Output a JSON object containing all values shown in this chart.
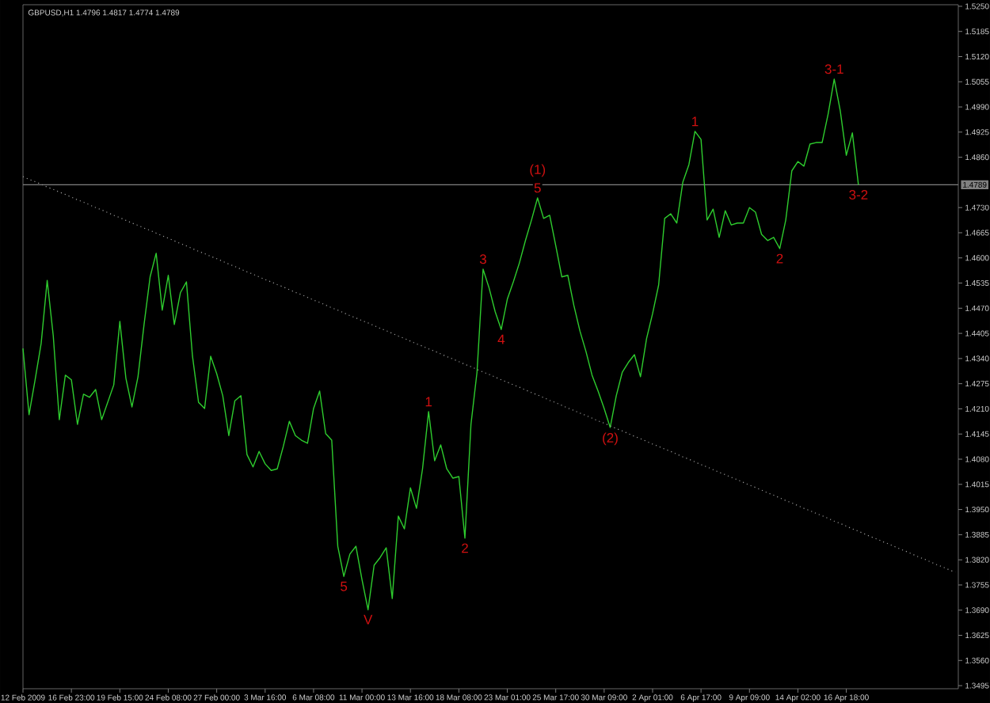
{
  "chart_data": {
    "type": "line",
    "title": "GBPUSD,H1  1.4796 1.4817 1.4774 1.4789",
    "categories": [
      "12 Feb 2009",
      null,
      null,
      null,
      null,
      null,
      null,
      null,
      "16 Feb 23:00",
      null,
      null,
      null,
      null,
      null,
      null,
      null,
      "19 Feb 15:00",
      null,
      null,
      null,
      null,
      null,
      null,
      null,
      "24 Feb 08:00",
      null,
      null,
      null,
      null,
      null,
      null,
      null,
      "27 Feb 00:00",
      null,
      null,
      null,
      null,
      null,
      null,
      null,
      "3 Mar 16:00",
      null,
      null,
      null,
      null,
      null,
      null,
      null,
      "6 Mar 08:00",
      null,
      null,
      null,
      null,
      null,
      null,
      null,
      "11 Mar 00:00",
      null,
      null,
      null,
      null,
      null,
      null,
      null,
      "13 Mar 16:00",
      null,
      null,
      null,
      null,
      null,
      null,
      null,
      "18 Mar 08:00",
      null,
      null,
      null,
      null,
      null,
      null,
      null,
      "23 Mar 01:00",
      null,
      null,
      null,
      null,
      null,
      null,
      null,
      "25 Mar 17:00",
      null,
      null,
      null,
      null,
      null,
      null,
      null,
      "30 Mar 09:00",
      null,
      null,
      null,
      null,
      null,
      null,
      null,
      "2 Apr 01:00",
      null,
      null,
      null,
      null,
      null,
      null,
      null,
      "6 Apr 17:00",
      null,
      null,
      null,
      null,
      null,
      null,
      null,
      "9 Apr 09:00",
      null,
      null,
      null,
      null,
      null,
      null,
      null,
      "14 Apr 02:00",
      null,
      null,
      null,
      null,
      null,
      null,
      null,
      "16 Apr 18:00",
      null,
      null,
      null,
      null,
      null,
      null,
      null,
      null,
      null,
      null,
      null,
      null,
      null,
      null,
      null,
      null,
      null,
      null
    ],
    "series": [
      {
        "color": "#2ecc2e",
        "values": [
          1.4366,
          1.4195,
          1.4285,
          1.4379,
          1.4542,
          1.4399,
          1.4182,
          1.4297,
          1.4285,
          1.417,
          1.4248,
          1.424,
          1.426,
          1.4182,
          1.4227,
          1.4272,
          1.4436,
          1.4289,
          1.4215,
          1.4293,
          1.4428,
          1.4551,
          1.4612,
          1.4465,
          1.4555,
          1.4428,
          1.451,
          1.4538,
          1.4346,
          1.4227,
          1.4211,
          1.4346,
          1.4301,
          1.4244,
          1.4141,
          1.4231,
          1.4244,
          1.4092,
          1.406,
          1.41,
          1.4068,
          1.4051,
          1.4055,
          1.4113,
          1.4178,
          1.4141,
          1.4129,
          1.4121,
          1.4211,
          1.4256,
          1.4146,
          1.4129,
          1.3855,
          1.3777,
          1.3835,
          1.3855,
          1.3769,
          1.3691,
          1.3806,
          1.3826,
          1.3851,
          1.372,
          1.3933,
          1.39,
          1.4006,
          1.3953,
          1.4055,
          1.4203,
          1.4076,
          1.4117,
          1.4055,
          1.4031,
          1.4035,
          1.3876,
          1.417,
          1.4305,
          1.4571,
          1.4522,
          1.4461,
          1.4415,
          1.4493,
          1.4538,
          1.4587,
          1.4645,
          1.4698,
          1.4755,
          1.4702,
          1.471,
          1.4632,
          1.4551,
          1.4555,
          1.4477,
          1.4411,
          1.4358,
          1.4297,
          1.4256,
          1.4211,
          1.4162,
          1.4244,
          1.4305,
          1.433,
          1.435,
          1.4293,
          1.4391,
          1.4456,
          1.453,
          1.4702,
          1.4714,
          1.469,
          1.4796,
          1.4841,
          1.4927,
          1.4906,
          1.4698,
          1.4726,
          1.4653,
          1.4722,
          1.4685,
          1.469,
          1.469,
          1.473,
          1.4718,
          1.4661,
          1.4645,
          1.4653,
          1.4624,
          1.4698,
          1.4825,
          1.4849,
          1.4837,
          1.4894,
          1.4898,
          1.4898,
          1.4972,
          1.5062,
          1.498,
          1.4865,
          1.4923,
          1.4789,
          null,
          null,
          null,
          null,
          null,
          null,
          null,
          null,
          null,
          null,
          null,
          null,
          null,
          null,
          null,
          null
        ]
      },
      {
        "type": "line",
        "color": "#9a9a9a",
        "line_style": "dotted",
        "values": [
          1.481,
          1.4803,
          1.4797,
          1.479,
          1.4783,
          1.4777,
          1.477,
          1.4764,
          1.4757,
          1.475,
          1.4744,
          1.4737,
          1.473,
          1.4724,
          1.4717,
          1.471,
          1.4704,
          1.4697,
          1.469,
          1.4684,
          1.4677,
          1.4671,
          1.4664,
          1.4657,
          1.4651,
          1.4644,
          1.4637,
          1.4631,
          1.4624,
          1.4617,
          1.4611,
          1.4604,
          1.4598,
          1.4591,
          1.4584,
          1.4578,
          1.4571,
          1.4564,
          1.4558,
          1.4551,
          1.4544,
          1.4538,
          1.4531,
          1.4525,
          1.4518,
          1.4511,
          1.4505,
          1.4498,
          1.4491,
          1.4485,
          1.4478,
          1.4471,
          1.4465,
          1.4458,
          1.4451,
          1.4445,
          1.4438,
          1.4432,
          1.4425,
          1.4418,
          1.4412,
          1.4405,
          1.4398,
          1.4392,
          1.4385,
          1.4378,
          1.4372,
          1.4365,
          1.4359,
          1.4352,
          1.4345,
          1.4339,
          1.4332,
          1.4325,
          1.4319,
          1.4312,
          1.4305,
          1.4299,
          1.4292,
          1.4285,
          1.4279,
          1.4272,
          1.4266,
          1.4259,
          1.4252,
          1.4246,
          1.4239,
          1.4232,
          1.4226,
          1.4219,
          1.4212,
          1.4206,
          1.4199,
          1.4193,
          1.4186,
          1.4179,
          1.4173,
          1.4166,
          1.4159,
          1.4153,
          1.4146,
          1.4139,
          1.4133,
          1.4126,
          1.4119,
          1.4113,
          1.4106,
          1.41,
          1.4093,
          1.4086,
          1.408,
          1.4073,
          1.4066,
          1.406,
          1.4053,
          1.4046,
          1.404,
          1.4033,
          1.4027,
          1.402,
          1.4013,
          1.4007,
          1.4,
          1.3993,
          1.3987,
          1.398,
          1.3973,
          1.3967,
          1.396,
          1.3953,
          1.3947,
          1.394,
          1.3934,
          1.3927,
          1.392,
          1.3914,
          1.3907,
          1.39,
          1.3894,
          1.3887,
          1.388,
          1.3874,
          1.3867,
          1.3861,
          1.3854,
          1.3847,
          1.3841,
          1.3834,
          1.3827,
          1.3821,
          1.3814,
          1.3807,
          1.3801,
          1.3794,
          1.3788
        ]
      }
    ],
    "line_style": "solid",
    "ylim": [
      1.3487,
      1.5254
    ],
    "yticks": [
      {
        "value": 1.525,
        "label": "1.5250"
      },
      {
        "value": 1.5185,
        "label": "1.5185"
      },
      {
        "value": 1.512,
        "label": "1.5120"
      },
      {
        "value": 1.5055,
        "label": "1.5055"
      },
      {
        "value": 1.499,
        "label": "1.4990"
      },
      {
        "value": 1.4925,
        "label": "1.4925"
      },
      {
        "value": 1.486,
        "label": "1.4860"
      },
      {
        "value": 1.473,
        "label": "1.4730"
      },
      {
        "value": 1.4665,
        "label": "1.4665"
      },
      {
        "value": 1.46,
        "label": "1.4600"
      },
      {
        "value": 1.4535,
        "label": "1.4535"
      },
      {
        "value": 1.447,
        "label": "1.4470"
      },
      {
        "value": 1.4405,
        "label": "1.4405"
      },
      {
        "value": 1.434,
        "label": "1.4340"
      },
      {
        "value": 1.4275,
        "label": "1.4275"
      },
      {
        "value": 1.421,
        "label": "1.4210"
      },
      {
        "value": 1.4145,
        "label": "1.4145"
      },
      {
        "value": 1.408,
        "label": "1.4080"
      },
      {
        "value": 1.4015,
        "label": "1.4015"
      },
      {
        "value": 1.395,
        "label": "1.3950"
      },
      {
        "value": 1.3885,
        "label": "1.3885"
      },
      {
        "value": 1.382,
        "label": "1.3820"
      },
      {
        "value": 1.3755,
        "label": "1.3755"
      },
      {
        "value": 1.369,
        "label": "1.3690"
      },
      {
        "value": 1.3625,
        "label": "1.3625"
      },
      {
        "value": 1.356,
        "label": "1.3560"
      },
      {
        "value": 1.3495,
        "label": "1.3495"
      }
    ],
    "ref_lines": [
      {
        "axis": "y",
        "value": 1.4789,
        "label": "1.4789",
        "color": "#808080"
      }
    ],
    "annotations": [
      {
        "text": "5",
        "y": 1.3777
      },
      {
        "text": "V",
        "y": 1.3691
      },
      {
        "text": "1",
        "y": 1.4203
      },
      {
        "text": "2",
        "y": 1.3876
      },
      {
        "text": "3",
        "y": 1.4571
      },
      {
        "text": "4",
        "y": 1.4415
      },
      {
        "text": "5",
        "y": 1.4755
      },
      {
        "text": "(1)",
        "y": 1.4755
      },
      {
        "text": "(2)",
        "y": 1.4162
      },
      {
        "text": "1",
        "y": 1.4927
      },
      {
        "text": "2",
        "y": 1.4624
      },
      {
        "text": "3-1",
        "y": 1.5062
      },
      {
        "text": "3-2",
        "y": 1.4789
      }
    ]
  }
}
